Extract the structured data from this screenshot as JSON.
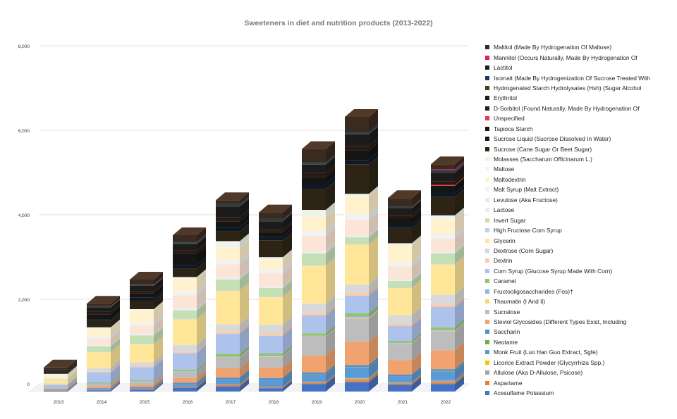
{
  "chart_data": {
    "type": "bar",
    "stacked": true,
    "title": "Sweeteners in diet and nutrition products (2013-2022)",
    "xlabel": "",
    "ylabel": "",
    "ylim": [
      0,
      8000
    ],
    "yticks": [
      0,
      2000,
      4000,
      6000,
      8000
    ],
    "ytick_labels": [
      "0",
      "2,000",
      "4,000",
      "6,000",
      "8,000"
    ],
    "categories": [
      "2013",
      "2014",
      "2015",
      "2016",
      "2017",
      "2018",
      "2019",
      "2020",
      "2021",
      "2022"
    ],
    "legend_position": "right",
    "series": [
      {
        "name": "Acesulfame Potassium",
        "color": "#4472c4",
        "values": [
          20,
          30,
          40,
          90,
          120,
          80,
          180,
          220,
          160,
          180
        ]
      },
      {
        "name": "Aspartame",
        "color": "#ed7d31",
        "values": [
          10,
          10,
          20,
          20,
          30,
          20,
          30,
          40,
          30,
          30
        ]
      },
      {
        "name": "Allulose (Aka D-Allulose, Psicose)",
        "color": "#a5a5a5",
        "values": [
          0,
          0,
          0,
          0,
          20,
          10,
          20,
          50,
          30,
          60
        ]
      },
      {
        "name": "Licorice Extract Powder (Glycyrrhiza Spp.)",
        "color": "#ffc000",
        "values": [
          0,
          0,
          0,
          0,
          0,
          0,
          0,
          10,
          0,
          0
        ]
      },
      {
        "name": "Monk Fruit (Luo Han Guo Extract, Sgfe)",
        "color": "#5b9bd5",
        "values": [
          10,
          20,
          30,
          70,
          120,
          170,
          170,
          250,
          140,
          210
        ]
      },
      {
        "name": "Neotame",
        "color": "#70ad47",
        "values": [
          0,
          0,
          0,
          0,
          0,
          0,
          10,
          10,
          0,
          10
        ]
      },
      {
        "name": "Saccharin",
        "color": "#5b8fc9",
        "values": [
          10,
          20,
          20,
          30,
          40,
          40,
          40,
          50,
          40,
          40
        ]
      },
      {
        "name": "Steviol Glycosides (Different Types Exist, Including",
        "color": "#f0a36e",
        "values": [
          20,
          50,
          60,
          110,
          220,
          250,
          400,
          550,
          340,
          450
        ]
      },
      {
        "name": "Sucralose",
        "color": "#bdbdbd",
        "values": [
          30,
          60,
          80,
          150,
          250,
          250,
          440,
          550,
          390,
          450
        ]
      },
      {
        "name": "Thaumatin (I And Ii)",
        "color": "#ffd966",
        "values": [
          0,
          0,
          0,
          0,
          10,
          10,
          10,
          20,
          10,
          10
        ]
      },
      {
        "name": "Fructooligosaccharides (Fos)†",
        "color": "#8fb4e3",
        "values": [
          0,
          10,
          10,
          10,
          20,
          20,
          20,
          30,
          20,
          20
        ]
      },
      {
        "name": "Caramel",
        "color": "#92c46b",
        "values": [
          10,
          20,
          20,
          40,
          60,
          50,
          60,
          70,
          40,
          60
        ]
      },
      {
        "name": "Corn Syrup (Glucose Syrup Made With Corn)",
        "color": "#aec3ec",
        "values": [
          50,
          230,
          300,
          390,
          480,
          420,
          420,
          420,
          350,
          480
        ]
      },
      {
        "name": "Dextrin",
        "color": "#f9cbad",
        "values": [
          10,
          20,
          20,
          30,
          60,
          60,
          60,
          70,
          50,
          60
        ]
      },
      {
        "name": "Dextrose (Corn Sugar)",
        "color": "#d9d9d9",
        "values": [
          20,
          90,
          90,
          160,
          160,
          200,
          220,
          190,
          210,
          230
        ]
      },
      {
        "name": "Glycerin",
        "color": "#ffe699",
        "values": [
          80,
          370,
          430,
          610,
          800,
          660,
          900,
          950,
          640,
          720
        ]
      },
      {
        "name": "High Fructose Corn Syrup",
        "color": "#bdd0ef",
        "values": [
          0,
          10,
          10,
          10,
          10,
          10,
          10,
          10,
          10,
          10
        ]
      },
      {
        "name": "Invert Sugar",
        "color": "#c5e0b4",
        "values": [
          20,
          130,
          200,
          200,
          250,
          200,
          280,
          160,
          160,
          250
        ]
      },
      {
        "name": "Lactose",
        "color": "#ededed",
        "values": [
          20,
          40,
          40,
          60,
          60,
          50,
          60,
          50,
          40,
          50
        ]
      },
      {
        "name": "Levulose (Aka Fructose)",
        "color": "#fbe5d6",
        "values": [
          20,
          150,
          200,
          300,
          300,
          300,
          350,
          350,
          300,
          300
        ]
      },
      {
        "name": "Malt Syrup (Malt Extract)",
        "color": "#f2f2f2",
        "values": [
          10,
          60,
          70,
          100,
          110,
          100,
          120,
          150,
          100,
          120
        ]
      },
      {
        "name": "Maltodextrin",
        "color": "#fff2cc",
        "values": [
          70,
          170,
          280,
          280,
          280,
          230,
          340,
          420,
          390,
          330
        ]
      },
      {
        "name": "Maltose",
        "color": "#f0f6fc",
        "values": [
          0,
          10,
          10,
          10,
          10,
          10,
          10,
          10,
          10,
          10
        ]
      },
      {
        "name": "Molasses (Saccharum Officinarum L.)",
        "color": "#eef5e8",
        "values": [
          10,
          20,
          20,
          40,
          150,
          40,
          150,
          50,
          50,
          90
        ]
      },
      {
        "name": "Sucrose (Cane Sugar Or Beet Sugar)",
        "color": "#2d2416",
        "values": [
          30,
          150,
          200,
          200,
          230,
          400,
          500,
          700,
          360,
          440
        ]
      },
      {
        "name": "Sucrose Liquid (Sucrose Dissolved In Water)",
        "color": "#0d1a26",
        "values": [
          10,
          40,
          70,
          80,
          100,
          80,
          100,
          100,
          80,
          90
        ]
      },
      {
        "name": "Tapioca Starch",
        "color": "#151515",
        "values": [
          20,
          120,
          100,
          270,
          140,
          110,
          180,
          230,
          150,
          170
        ]
      },
      {
        "name": "Unspecified",
        "color": "#e8344e",
        "values": [
          0,
          0,
          0,
          0,
          0,
          0,
          0,
          0,
          0,
          20
        ]
      },
      {
        "name": "D-Sorbitol (Found Naturally, Made By Hydrogenation Of",
        "color": "#2a1a10",
        "values": [
          10,
          60,
          60,
          80,
          90,
          60,
          90,
          100,
          70,
          90
        ]
      },
      {
        "name": "Erythritol",
        "color": "#1c1c1c",
        "values": [
          30,
          100,
          120,
          150,
          260,
          200,
          200,
          280,
          170,
          200
        ]
      },
      {
        "name": "Hydrogenated Starch Hydrolysates (Hsh) (Sugar Alcohol",
        "color": "#4a3a1e",
        "values": [
          0,
          10,
          10,
          20,
          20,
          20,
          20,
          20,
          10,
          20
        ]
      },
      {
        "name": "Isomalt (Made By Hydrogenization Of Sucrose Treated With",
        "color": "#1d3a5c",
        "values": [
          0,
          10,
          10,
          20,
          20,
          20,
          20,
          20,
          10,
          20
        ]
      },
      {
        "name": "Lactitol",
        "color": "#17202a",
        "values": [
          0,
          10,
          10,
          10,
          20,
          20,
          20,
          30,
          10,
          20
        ]
      },
      {
        "name": "Mannitol (Occurs Naturally, Made By Hydrogenation Of",
        "color": "#e31a66",
        "values": [
          0,
          0,
          0,
          0,
          0,
          0,
          0,
          0,
          0,
          20
        ]
      },
      {
        "name": "Maltitol (Made By Hydrogenation Of Maltose)",
        "color": "#3b2a1e",
        "values": [
          50,
          60,
          120,
          160,
          90,
          150,
          310,
          340,
          210,
          120
        ]
      }
    ]
  }
}
